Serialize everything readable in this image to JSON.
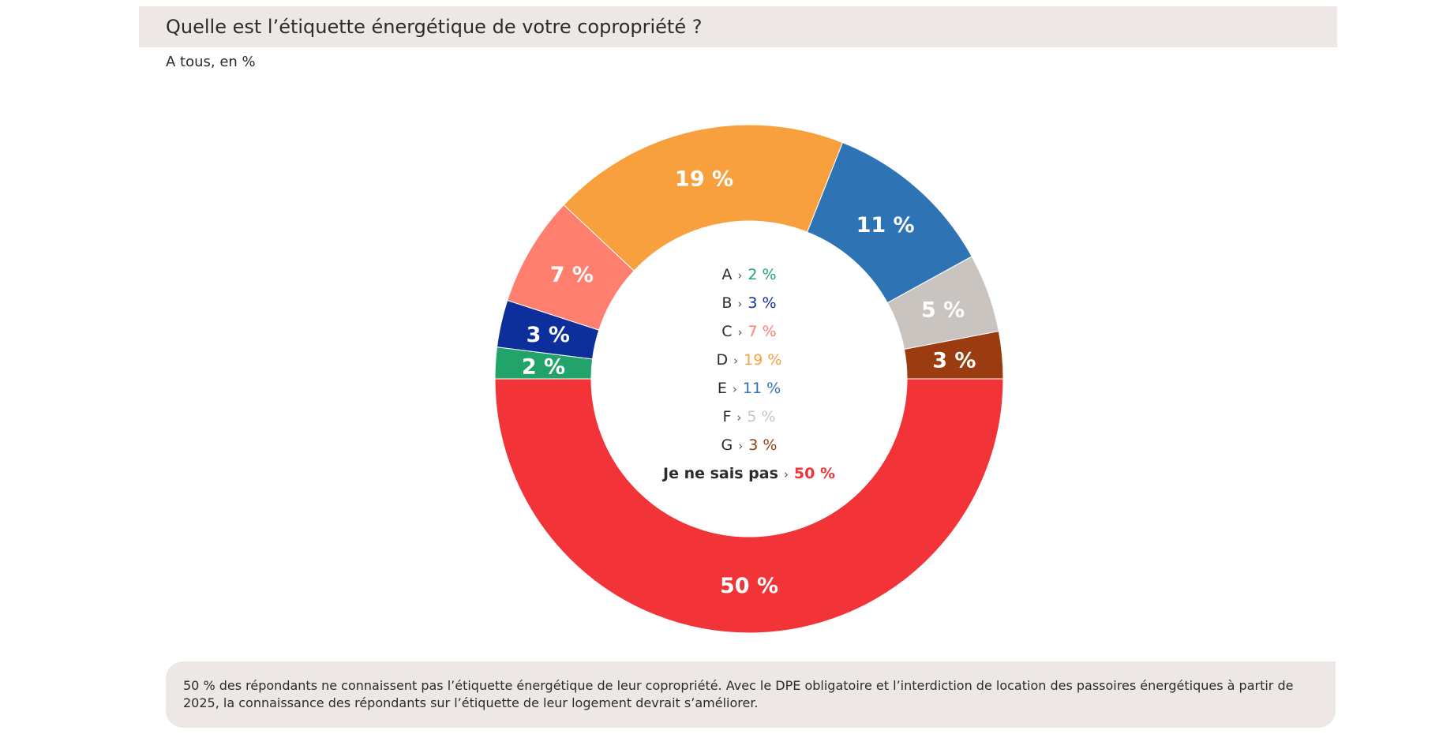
{
  "header": {
    "title": "Quelle est l’étiquette énergétique de votre copropriété ?",
    "subtitle": "A tous, en %"
  },
  "chart_data": {
    "type": "pie",
    "style": "donut",
    "categories": [
      "A",
      "B",
      "C",
      "D",
      "E",
      "F",
      "G",
      "Je ne sais pas"
    ],
    "values": [
      2,
      3,
      7,
      19,
      11,
      5,
      3,
      50
    ],
    "colors": [
      "#22a36a",
      "#0c2f9c",
      "#ff7f6e",
      "#f8a03d",
      "#2e74b5",
      "#c9c4bf",
      "#9a3c10",
      "#f23439"
    ],
    "slice_labels": [
      "2 %",
      "3 %",
      "7 %",
      "19 %",
      "11 %",
      "5 %",
      "3 %",
      "50 %"
    ],
    "legend": [
      {
        "label": "A",
        "value": "2 %"
      },
      {
        "label": "B",
        "value": "3 %"
      },
      {
        "label": "C",
        "value": "7 %"
      },
      {
        "label": "D",
        "value": "19 %"
      },
      {
        "label": "E",
        "value": "11 %"
      },
      {
        "label": "F",
        "value": "5 %"
      },
      {
        "label": "G",
        "value": "3 %"
      },
      {
        "label": "Je ne sais pas",
        "value": "50 %"
      }
    ],
    "legend_placement": "center",
    "legend_separator": "›"
  },
  "note": {
    "text": "50 % des répondants ne connaissent pas l’étiquette énergétique de leur copropriété. Avec le DPE obligatoire et l’interdiction de location des passoires énergétiques à partir de 2025, la connaissance des répondants sur l’étiquette de leur logement devrait s’améliorer."
  }
}
